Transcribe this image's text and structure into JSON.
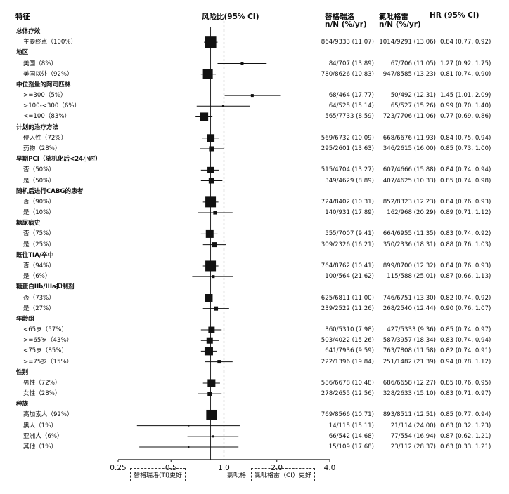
{
  "headers": {
    "feature": "特征",
    "hr_plot": "风险比(95% CI)",
    "tica": "替格瑞洛",
    "clop": "氯吡格雷",
    "nnyr1": "n/N (%/yr)",
    "nnyr2": "n/N (%/yr)",
    "hr": "HR (95% CI)"
  },
  "footer": {
    "favors_ti": "替格瑞洛(TI)更好",
    "favors_cl": "氯吡格雷（CI）更好",
    "cl_cut": "氯吡格"
  },
  "colors": {
    "ink": "#111111",
    "marker": "#111111"
  },
  "chart_data": {
    "type": "forest",
    "x_scale": "log",
    "reference_line": 1.0,
    "xlim": [
      0.25,
      4.0
    ],
    "x_ticks": [
      0.25,
      0.5,
      1.0,
      2.0,
      4.0
    ],
    "x_tick_labels": [
      "0.25",
      "0.5",
      "1.0",
      "2.0",
      "4.0"
    ],
    "rows": [
      {
        "label": "总体疗效",
        "kind": "category"
      },
      {
        "label": "主要终点（100%）",
        "kind": "item",
        "ti": "864/9333 (11.07)",
        "cl": "1014/9291 (13.06)",
        "hr": 0.84,
        "lo": 0.77,
        "hi": 0.92,
        "hr_text": "0.84 (0.77, 0.92)",
        "size": 16
      },
      {
        "label": "地区",
        "kind": "category"
      },
      {
        "label": "美国（8%）",
        "kind": "item",
        "ti": "84/707 (13.89)",
        "cl": "67/706 (11.05)",
        "hr": 1.27,
        "lo": 0.92,
        "hi": 1.75,
        "hr_text": "1.27 (0.92, 1.75)",
        "size": 4
      },
      {
        "label": "美国以外（92%）",
        "kind": "item",
        "ti": "780/8626 (10.83)",
        "cl": "947/8585 (13.23)",
        "hr": 0.81,
        "lo": 0.74,
        "hi": 0.9,
        "hr_text": "0.81 (0.74, 0.90)",
        "size": 14
      },
      {
        "label": "中位剂量的阿司匹林",
        "kind": "category"
      },
      {
        "label": ">=300（5%）",
        "kind": "item",
        "ti": "68/464 (17.77)",
        "cl": "50/492 (12.31)",
        "hr": 1.45,
        "lo": 1.01,
        "hi": 2.09,
        "hr_text": "1.45 (1.01, 2.09)",
        "size": 4
      },
      {
        "label": ">100-<300（6%）",
        "kind": "item",
        "ti": "64/525 (15.14)",
        "cl": "65/527 (15.26)",
        "hr": 0.99,
        "lo": 0.7,
        "hi": 1.4,
        "hr_text": "0.99 (0.70, 1.40)",
        "size": 3
      },
      {
        "label": "<=100（83%）",
        "kind": "item",
        "ti": "565/7733 (8.59)",
        "cl": "723/7706 (11.06)",
        "hr": 0.77,
        "lo": 0.69,
        "hi": 0.86,
        "hr_text": "0.77 (0.69, 0.86)",
        "size": 12
      },
      {
        "label": "计划的治疗方法",
        "kind": "category"
      },
      {
        "label": "侵入性（72%）",
        "kind": "item",
        "ti": "569/6732 (10.09)",
        "cl": "668/6676 (11.93)",
        "hr": 0.84,
        "lo": 0.75,
        "hi": 0.94,
        "hr_text": "0.84 (0.75, 0.94)",
        "size": 11
      },
      {
        "label": "药物（28%）",
        "kind": "item",
        "ti": "295/2601 (13.63)",
        "cl": "346/2615 (16.00)",
        "hr": 0.85,
        "lo": 0.73,
        "hi": 1.0,
        "hr_text": "0.85 (0.73, 1.00)",
        "size": 7
      },
      {
        "label": "早期PCI（随机化后<24小时）",
        "kind": "category"
      },
      {
        "label": "否（50%）",
        "kind": "item",
        "ti": "515/4704 (13.27)",
        "cl": "607/4666 (15.88)",
        "hr": 0.84,
        "lo": 0.74,
        "hi": 0.94,
        "hr_text": "0.84 (0.74, 0.94)",
        "size": 9
      },
      {
        "label": "是（50%）",
        "kind": "item",
        "ti": "349/4629 (8.89)",
        "cl": "407/4625 (10.33)",
        "hr": 0.85,
        "lo": 0.74,
        "hi": 0.98,
        "hr_text": "0.85 (0.74, 0.98)",
        "size": 8
      },
      {
        "label": "随机后进行CABG的患者",
        "kind": "category"
      },
      {
        "label": "否（90%）",
        "kind": "item",
        "ti": "724/8402 (10.31)",
        "cl": "852/8323 (12.23)",
        "hr": 0.84,
        "lo": 0.76,
        "hi": 0.93,
        "hr_text": "0.84 (0.76, 0.93)",
        "size": 15
      },
      {
        "label": "是（10%）",
        "kind": "item",
        "ti": "140/931 (17.89)",
        "cl": "162/968 (20.29)",
        "hr": 0.89,
        "lo": 0.71,
        "hi": 1.12,
        "hr_text": "0.89 (0.71, 1.12)",
        "size": 5
      },
      {
        "label": "糖尿病史",
        "kind": "category"
      },
      {
        "label": "否（75%）",
        "kind": "item",
        "ti": "555/7007 (9.41)",
        "cl": "664/6955 (11.35)",
        "hr": 0.83,
        "lo": 0.74,
        "hi": 0.92,
        "hr_text": "0.83 (0.74, 0.92)",
        "size": 11
      },
      {
        "label": "是（25%）",
        "kind": "item",
        "ti": "309/2326 (16.21)",
        "cl": "350/2336 (18.31)",
        "hr": 0.88,
        "lo": 0.76,
        "hi": 1.03,
        "hr_text": "0.88 (0.76, 1.03)",
        "size": 7
      },
      {
        "label": "既往TIA/卒中",
        "kind": "category"
      },
      {
        "label": "否（94%）",
        "kind": "item",
        "ti": "764/8762 (10.41)",
        "cl": "899/8700 (12.32)",
        "hr": 0.84,
        "lo": 0.76,
        "hi": 0.93,
        "hr_text": "0.84 (0.76, 0.93)",
        "size": 15
      },
      {
        "label": "是（6%）",
        "kind": "item",
        "ti": "100/564 (21.62)",
        "cl": "115/588 (25.01)",
        "hr": 0.87,
        "lo": 0.66,
        "hi": 1.13,
        "hr_text": "0.87 (0.66, 1.13)",
        "size": 4
      },
      {
        "label": "糖蛋白IIb/IIIa抑制剂",
        "kind": "category"
      },
      {
        "label": "否（73%）",
        "kind": "item",
        "ti": "625/6811 (11.00)",
        "cl": "746/6751 (13.30)",
        "hr": 0.82,
        "lo": 0.74,
        "hi": 0.92,
        "hr_text": "0.82 (0.74, 0.92)",
        "size": 11
      },
      {
        "label": "是（27%）",
        "kind": "item",
        "ti": "239/2522 (11.26)",
        "cl": "268/2540 (12.44)",
        "hr": 0.9,
        "lo": 0.76,
        "hi": 1.07,
        "hr_text": "0.90 (0.76, 1.07)",
        "size": 6
      },
      {
        "label": "年龄组",
        "kind": "category"
      },
      {
        "label": "<65岁（57%）",
        "kind": "item",
        "ti": "360/5310 (7.98)",
        "cl": "427/5333 (9.36)",
        "hr": 0.85,
        "lo": 0.74,
        "hi": 0.97,
        "hr_text": "0.85 (0.74, 0.97)",
        "size": 9
      },
      {
        "label": ">=65岁（43%）",
        "kind": "item",
        "ti": "503/4022 (15.26)",
        "cl": "587/3957 (18.34)",
        "hr": 0.83,
        "lo": 0.74,
        "hi": 0.94,
        "hr_text": "0.83 (0.74, 0.94)",
        "size": 9
      },
      {
        "label": "<75岁（85%）",
        "kind": "item",
        "ti": "641/7936 (9.59)",
        "cl": "763/7808 (11.58)",
        "hr": 0.82,
        "lo": 0.74,
        "hi": 0.91,
        "hr_text": "0.82 (0.74, 0.91)",
        "size": 12
      },
      {
        "label": ">=75岁（15%）",
        "kind": "item",
        "ti": "222/1396 (19.84)",
        "cl": "251/1482 (21.39)",
        "hr": 0.94,
        "lo": 0.78,
        "hi": 1.12,
        "hr_text": "0.94 (0.78, 1.12)",
        "size": 5
      },
      {
        "label": "性别",
        "kind": "category"
      },
      {
        "label": "男性（72%）",
        "kind": "item",
        "ti": "586/6678 (10.48)",
        "cl": "686/6658 (12.27)",
        "hr": 0.85,
        "lo": 0.76,
        "hi": 0.95,
        "hr_text": "0.85 (0.76, 0.95)",
        "size": 11
      },
      {
        "label": "女性（28%）",
        "kind": "item",
        "ti": "278/2655 (12.56)",
        "cl": "328/2633 (15.10)",
        "hr": 0.83,
        "lo": 0.71,
        "hi": 0.97,
        "hr_text": "0.83 (0.71, 0.97)",
        "size": 6
      },
      {
        "label": "种族",
        "kind": "category"
      },
      {
        "label": "高加索人（92%）",
        "kind": "item",
        "ti": "769/8566 (10.71)",
        "cl": "893/8511 (12.51)",
        "hr": 0.85,
        "lo": 0.77,
        "hi": 0.94,
        "hr_text": "0.85 (0.77, 0.94)",
        "size": 15
      },
      {
        "label": "黑人（1%）",
        "kind": "item",
        "ti": "14/115 (15.11)",
        "cl": "21/114 (24.00)",
        "hr": 0.63,
        "lo": 0.32,
        "hi": 1.23,
        "hr_text": "0.63 (0.32, 1.23)",
        "size": 2
      },
      {
        "label": "亚洲人（6%）",
        "kind": "item",
        "ti": "66/542 (14.68)",
        "cl": "77/554 (16.94)",
        "hr": 0.87,
        "lo": 0.62,
        "hi": 1.21,
        "hr_text": "0.87 (0.62, 1.21)",
        "size": 3
      },
      {
        "label": "其他（1%）",
        "kind": "item",
        "ti": "15/109 (17.68)",
        "cl": "23/112 (28.37)",
        "hr": 0.63,
        "lo": 0.33,
        "hi": 1.21,
        "hr_text": "0.63 (0.33, 1.21)",
        "size": 2
      }
    ]
  }
}
